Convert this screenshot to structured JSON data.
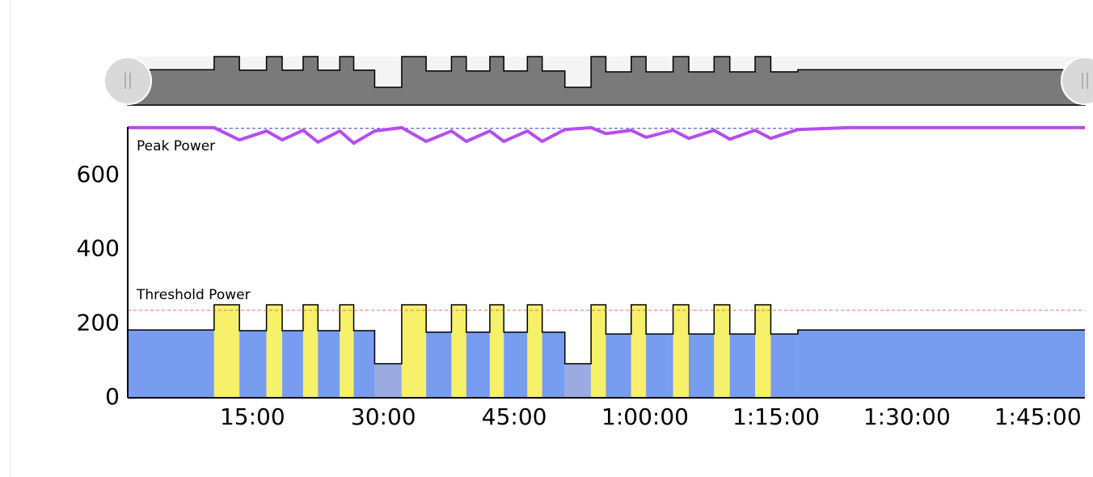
{
  "chart_data": {
    "type": "workout",
    "xlim": [
      0.7,
      110.4
    ],
    "ylim": [
      0,
      731
    ],
    "xticks": [
      {
        "value": 15,
        "label": "15:00"
      },
      {
        "value": 30,
        "label": "30:00"
      },
      {
        "value": 45,
        "label": "45:00"
      },
      {
        "value": 60,
        "label": "1:00:00"
      },
      {
        "value": 75,
        "label": "1:15:00"
      },
      {
        "value": 90,
        "label": "1:30:00"
      },
      {
        "value": 105,
        "label": "1:45:00"
      }
    ],
    "yticks": [
      0,
      200,
      400,
      600
    ],
    "intervals": [
      {
        "start": 0.7,
        "end": 10.6,
        "power": 183,
        "color": "#789cf0"
      },
      {
        "start": 10.6,
        "end": 13.5,
        "power": 251,
        "color": "#f7f06a"
      },
      {
        "start": 13.5,
        "end": 16.6,
        "power": 181,
        "color": "#789cf0"
      },
      {
        "start": 16.6,
        "end": 18.4,
        "power": 251,
        "color": "#f7f06a"
      },
      {
        "start": 18.4,
        "end": 20.8,
        "power": 181,
        "color": "#789cf0"
      },
      {
        "start": 20.8,
        "end": 22.5,
        "power": 251,
        "color": "#f7f06a"
      },
      {
        "start": 22.5,
        "end": 25.0,
        "power": 181,
        "color": "#789cf0"
      },
      {
        "start": 25.0,
        "end": 26.6,
        "power": 251,
        "color": "#f7f06a"
      },
      {
        "start": 26.6,
        "end": 29.0,
        "power": 181,
        "color": "#789cf0"
      },
      {
        "start": 29.0,
        "end": 32.1,
        "power": 92,
        "color": "#9babe0"
      },
      {
        "start": 32.1,
        "end": 34.9,
        "power": 251,
        "color": "#f7f06a"
      },
      {
        "start": 34.9,
        "end": 37.8,
        "power": 177,
        "color": "#789cf0"
      },
      {
        "start": 37.8,
        "end": 39.5,
        "power": 251,
        "color": "#f7f06a"
      },
      {
        "start": 39.5,
        "end": 42.2,
        "power": 177,
        "color": "#789cf0"
      },
      {
        "start": 42.2,
        "end": 43.8,
        "power": 251,
        "color": "#f7f06a"
      },
      {
        "start": 43.8,
        "end": 46.5,
        "power": 177,
        "color": "#789cf0"
      },
      {
        "start": 46.5,
        "end": 48.2,
        "power": 251,
        "color": "#f7f06a"
      },
      {
        "start": 48.2,
        "end": 50.8,
        "power": 177,
        "color": "#789cf0"
      },
      {
        "start": 50.8,
        "end": 53.8,
        "power": 92,
        "color": "#9babe0"
      },
      {
        "start": 53.8,
        "end": 55.5,
        "power": 251,
        "color": "#f7f06a"
      },
      {
        "start": 55.5,
        "end": 58.4,
        "power": 172,
        "color": "#789cf0"
      },
      {
        "start": 58.4,
        "end": 60.1,
        "power": 251,
        "color": "#f7f06a"
      },
      {
        "start": 60.1,
        "end": 63.2,
        "power": 172,
        "color": "#789cf0"
      },
      {
        "start": 63.2,
        "end": 65.0,
        "power": 251,
        "color": "#f7f06a"
      },
      {
        "start": 65.0,
        "end": 67.9,
        "power": 172,
        "color": "#789cf0"
      },
      {
        "start": 67.9,
        "end": 69.7,
        "power": 251,
        "color": "#f7f06a"
      },
      {
        "start": 69.7,
        "end": 72.6,
        "power": 172,
        "color": "#789cf0"
      },
      {
        "start": 72.6,
        "end": 74.4,
        "power": 251,
        "color": "#f7f06a"
      },
      {
        "start": 74.4,
        "end": 77.5,
        "power": 172,
        "color": "#789cf0"
      },
      {
        "start": 77.5,
        "end": 110.4,
        "power": 183,
        "color": "#789cf0"
      }
    ],
    "peak_power": {
      "name": "Peak Power",
      "color": "#b44ef0",
      "label_color": "#1a1ad0",
      "reference": 727,
      "x": [
        0.7,
        10.6,
        13.5,
        16.6,
        18.4,
        20.8,
        22.5,
        25.0,
        26.6,
        29.0,
        32.1,
        34.9,
        37.8,
        39.5,
        42.2,
        43.8,
        46.5,
        48.2,
        50.8,
        53.8,
        55.5,
        58.4,
        60.1,
        63.2,
        65.0,
        67.9,
        69.7,
        72.6,
        74.4,
        77.5,
        83.3,
        110.4
      ],
      "values": [
        729,
        729,
        696,
        720,
        696,
        722,
        690,
        720,
        687,
        720,
        729,
        692,
        720,
        692,
        720,
        692,
        720,
        692,
        724,
        729,
        713,
        722,
        703,
        722,
        700,
        722,
        698,
        722,
        700,
        724,
        729,
        729
      ]
    },
    "threshold_power": {
      "name": "Threshold Power",
      "value": 236,
      "color": "#e04040"
    }
  }
}
